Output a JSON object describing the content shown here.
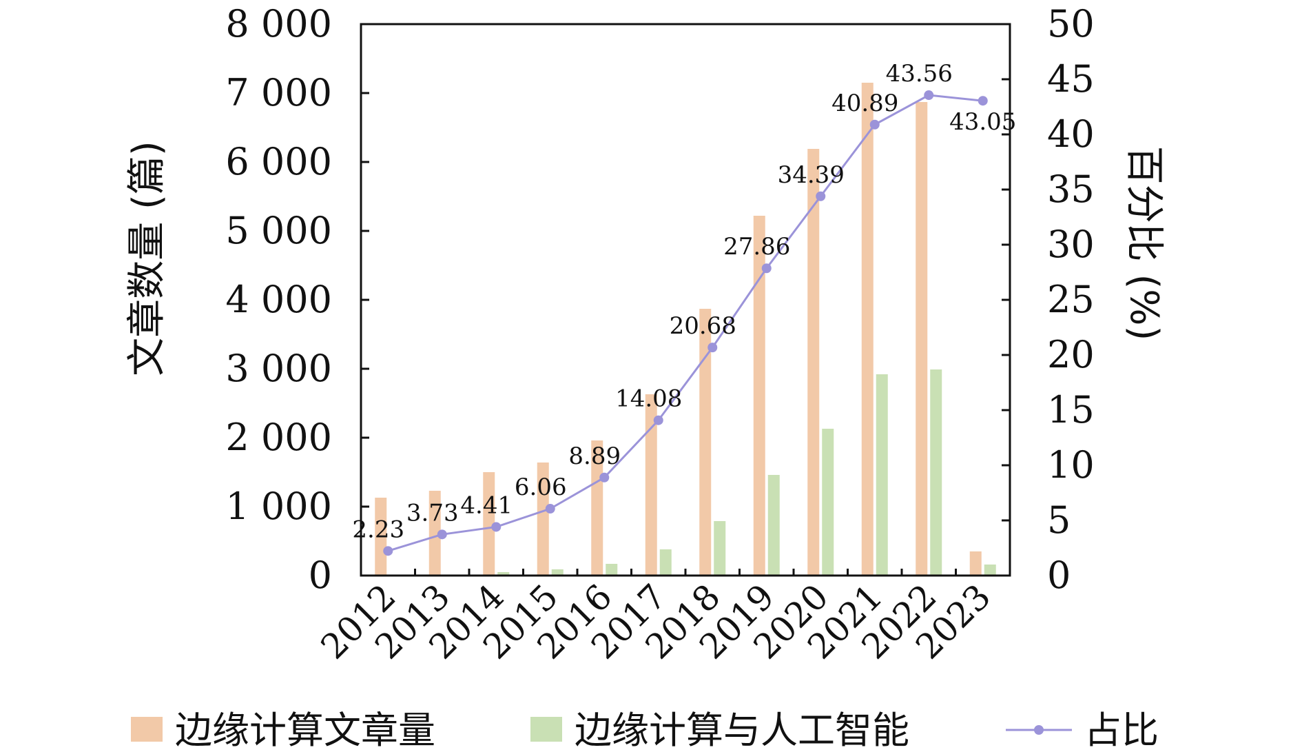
{
  "chart_data": {
    "type": "bar",
    "categories": [
      "2012",
      "2013",
      "2014",
      "2015",
      "2016",
      "2017",
      "2018",
      "2019",
      "2020",
      "2021",
      "2022",
      "2023"
    ],
    "series": [
      {
        "name": "边缘计算文章量",
        "type": "bar",
        "axis": "left",
        "color": "#f2c9a8",
        "values": [
          1130,
          1230,
          1500,
          1640,
          1960,
          2630,
          3870,
          5220,
          6190,
          7150,
          6870,
          350
        ]
      },
      {
        "name": "边缘计算与人工智能",
        "type": "bar",
        "axis": "left",
        "color": "#c9e0b4",
        "values": [
          0,
          0,
          50,
          90,
          170,
          380,
          790,
          1460,
          2130,
          2920,
          2990,
          160
        ]
      },
      {
        "name": "占比",
        "type": "line",
        "axis": "right",
        "color": "#9b93d9",
        "values": [
          2.23,
          3.73,
          4.41,
          6.06,
          8.89,
          14.08,
          20.68,
          27.86,
          34.39,
          40.89,
          43.56,
          43.05
        ],
        "labels": [
          "2.23",
          "3.73",
          "4.41",
          "6.06",
          "8.89",
          "14.08",
          "20.68",
          "27.86",
          "34.39",
          "40.89",
          "43.56",
          "43.05"
        ]
      }
    ],
    "ylabel": "文章数量 (篇)",
    "y2label": "百分比 (%)",
    "ylim": [
      0,
      8000
    ],
    "y2lim": [
      0,
      50
    ],
    "yticks": [
      "0",
      "1 000",
      "2 000",
      "3 000",
      "4 000",
      "5 000",
      "6 000",
      "7 000",
      "8 000"
    ],
    "y2ticks": [
      "0",
      "5",
      "10",
      "15",
      "20",
      "25",
      "30",
      "35",
      "40",
      "45",
      "50"
    ],
    "legend_position": "bottom",
    "grid": false
  }
}
